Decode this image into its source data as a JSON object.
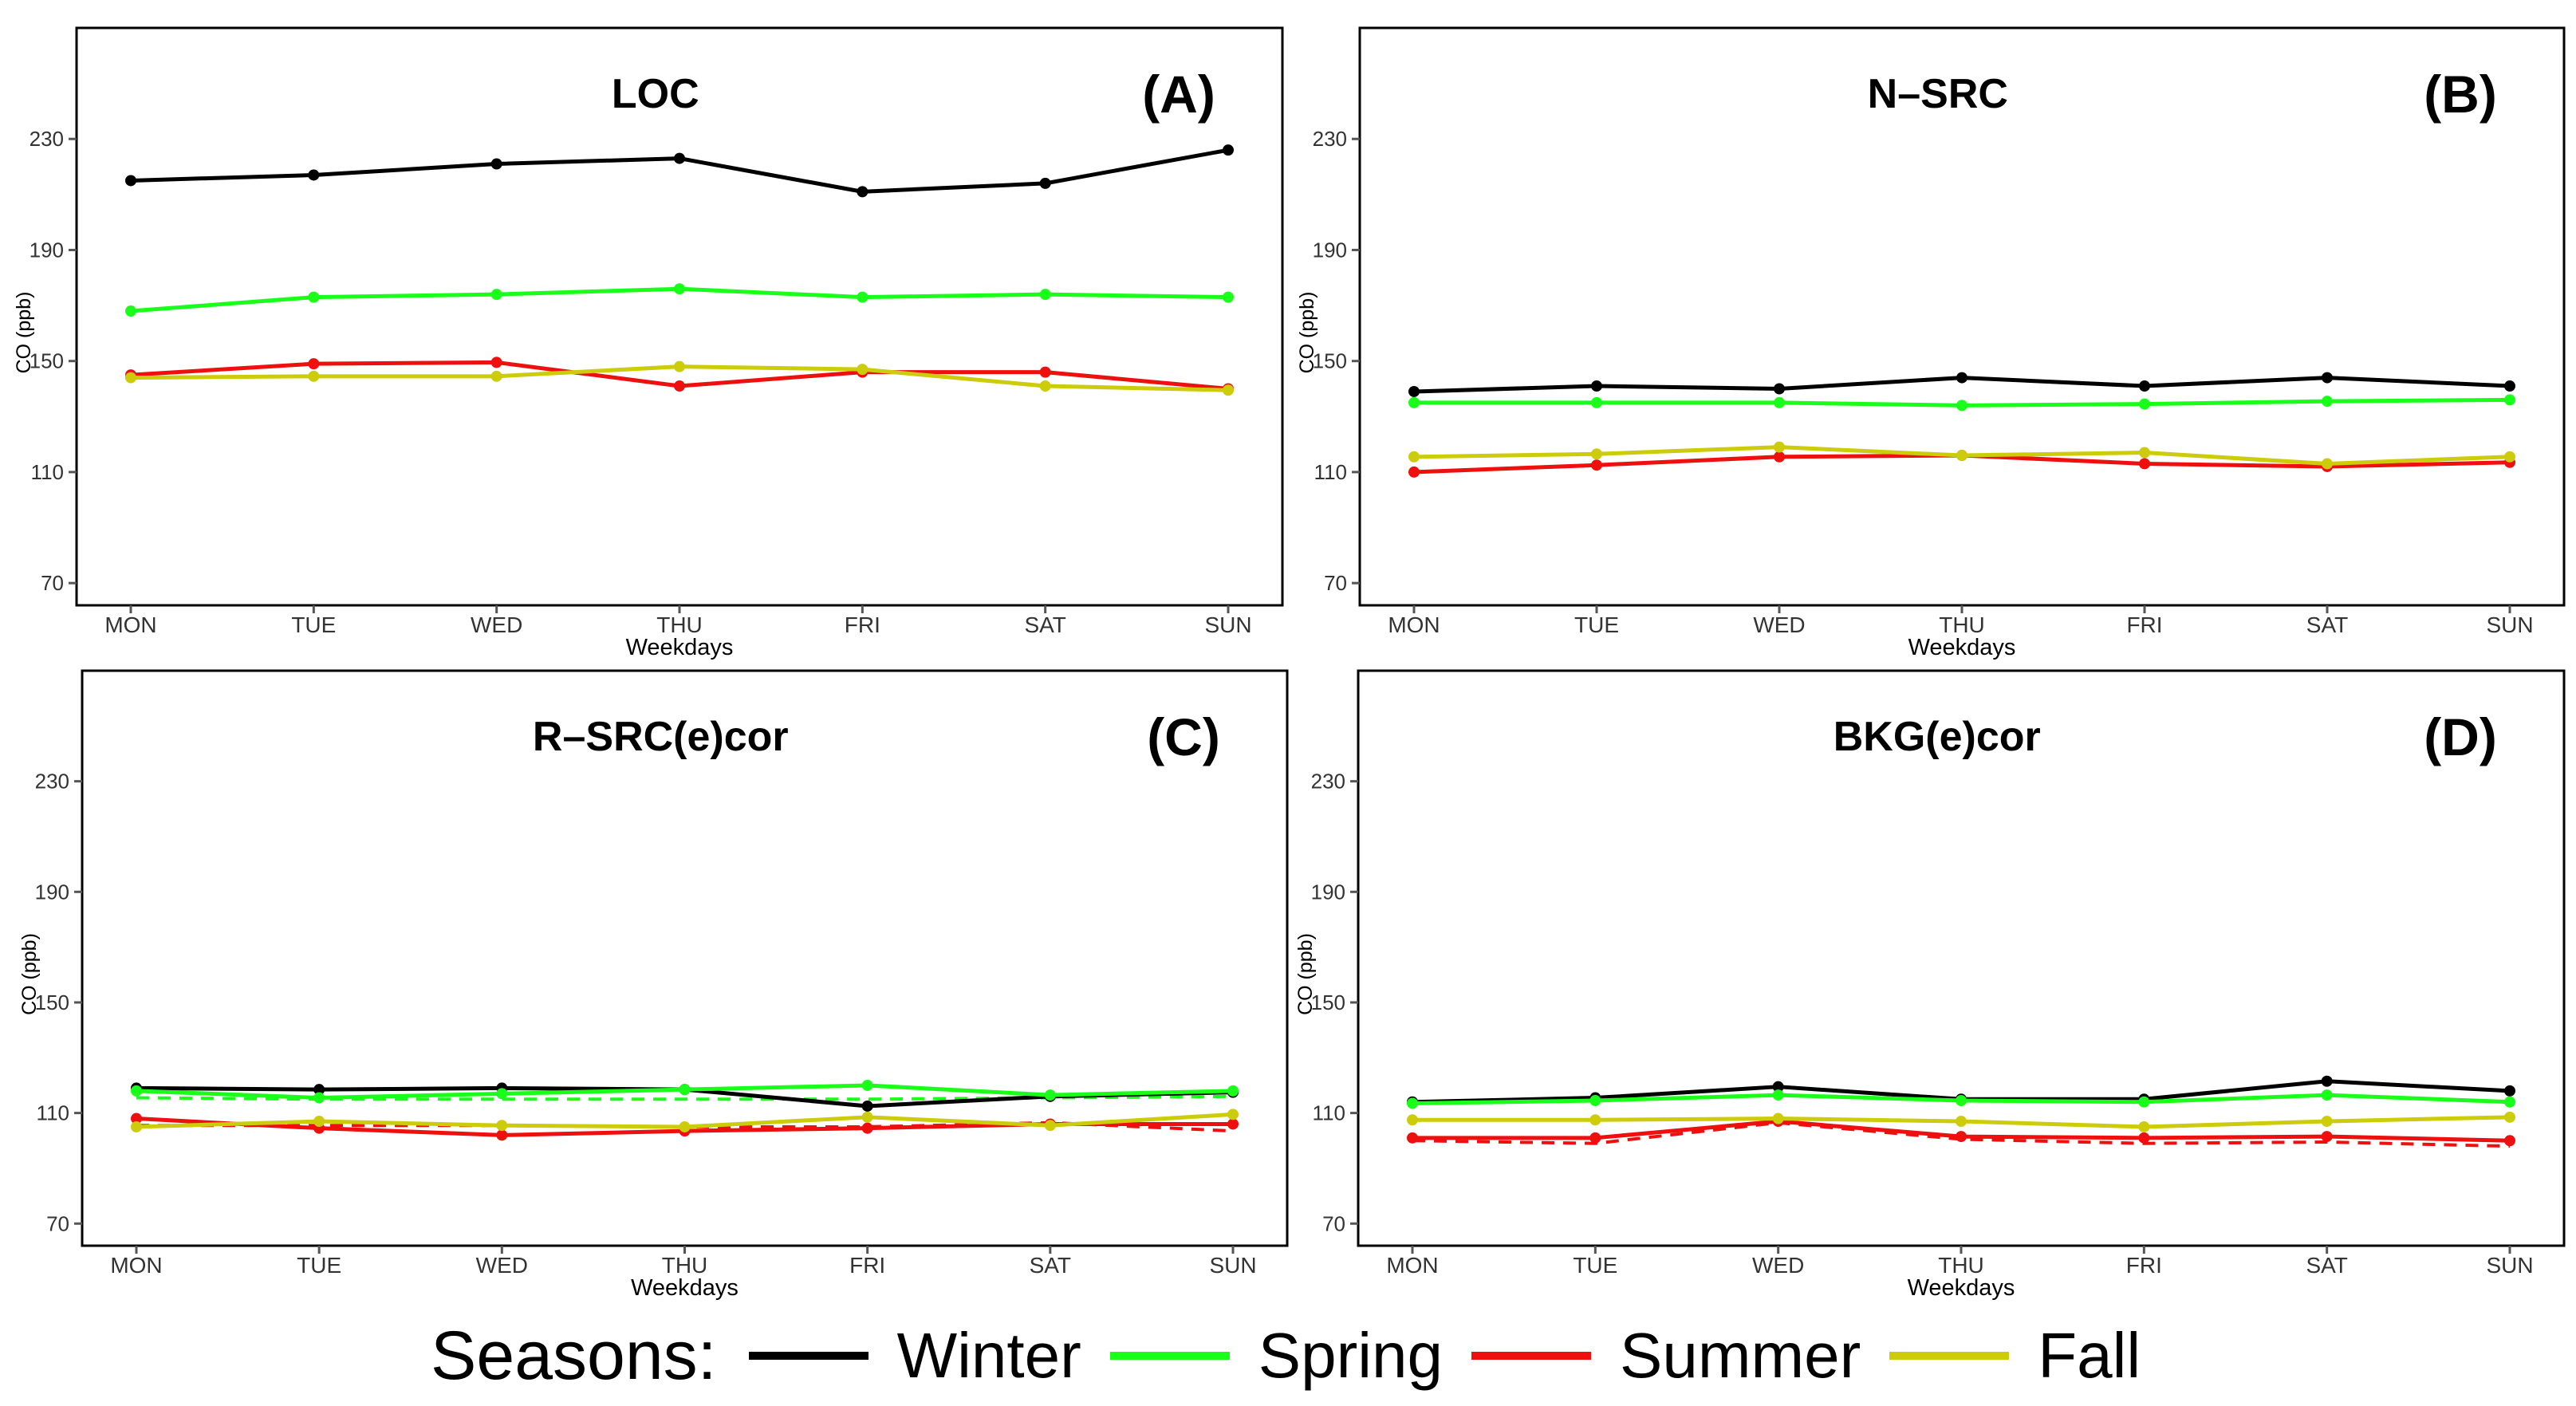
{
  "colors": {
    "Winter": "#000000",
    "Spring": "#19ff19",
    "Summer": "#ee0f0f",
    "Fall": "#cccc0a"
  },
  "legend": {
    "title": "Seasons:",
    "items": [
      {
        "label": "Winter",
        "color": "#000000"
      },
      {
        "label": "Spring",
        "color": "#19ff19"
      },
      {
        "label": "Summer",
        "color": "#ee0f0f"
      },
      {
        "label": "Fall",
        "color": "#cccc0a"
      }
    ]
  },
  "chart_data": [
    {
      "type": "line",
      "title": "LOC",
      "panel_label": "(A)",
      "xlabel": "Weekdays",
      "ylabel": "CO (ppb)",
      "categories": [
        "MON",
        "TUE",
        "WED",
        "THU",
        "FRI",
        "SAT",
        "SUN"
      ],
      "yticks": [
        70,
        110,
        150,
        190,
        230
      ],
      "ylim": [
        62,
        270
      ],
      "series": [
        {
          "name": "Winter",
          "values": [
            215,
            217,
            221,
            223,
            211,
            214,
            226
          ]
        },
        {
          "name": "Spring",
          "values": [
            168,
            173,
            174,
            176,
            173,
            174,
            173
          ]
        },
        {
          "name": "Summer",
          "values": [
            145,
            149,
            149.5,
            141,
            146,
            146,
            140
          ]
        },
        {
          "name": "Fall",
          "values": [
            144,
            144.5,
            144.5,
            148,
            147,
            141,
            139.5
          ]
        }
      ],
      "dashed_series": []
    },
    {
      "type": "line",
      "title": "N–SRC",
      "panel_label": "(B)",
      "xlabel": "Weekdays",
      "ylabel": "CO (ppb)",
      "categories": [
        "MON",
        "TUE",
        "WED",
        "THU",
        "FRI",
        "SAT",
        "SUN"
      ],
      "yticks": [
        70,
        110,
        150,
        190,
        230
      ],
      "ylim": [
        62,
        270
      ],
      "series": [
        {
          "name": "Winter",
          "values": [
            139,
            141,
            140,
            144,
            141,
            144,
            141
          ]
        },
        {
          "name": "Spring",
          "values": [
            135,
            135,
            135,
            134,
            134.5,
            135.5,
            136
          ]
        },
        {
          "name": "Summer",
          "values": [
            110,
            112.5,
            115.5,
            116,
            113,
            112,
            113.5
          ]
        },
        {
          "name": "Fall",
          "values": [
            115.5,
            116.5,
            119,
            116,
            117,
            113,
            115.5
          ]
        }
      ],
      "dashed_series": []
    },
    {
      "type": "line",
      "title": "R–SRC(e)cor",
      "panel_label": "(C)",
      "xlabel": "Weekdays",
      "ylabel": "CO (ppb)",
      "categories": [
        "MON",
        "TUE",
        "WED",
        "THU",
        "FRI",
        "SAT",
        "SUN"
      ],
      "yticks": [
        70,
        110,
        150,
        190,
        230
      ],
      "ylim": [
        62,
        270
      ],
      "series": [
        {
          "name": "Winter",
          "values": [
            119,
            118.5,
            119,
            118.5,
            112.5,
            116,
            117.5
          ]
        },
        {
          "name": "Spring",
          "values": [
            118,
            115.5,
            117,
            118.5,
            120,
            116.5,
            118
          ]
        },
        {
          "name": "Summer",
          "values": [
            108,
            104.5,
            102,
            103.5,
            104.5,
            106,
            106
          ]
        },
        {
          "name": "Fall",
          "values": [
            105,
            107,
            105.5,
            105,
            108.5,
            105.5,
            109.5
          ]
        }
      ],
      "dashed_series": [
        {
          "name": "Spring",
          "values": [
            115.5,
            115,
            115,
            115,
            115,
            115.5,
            116
          ]
        },
        {
          "name": "Summer",
          "values": [
            105.5,
            105.5,
            105.5,
            105,
            105,
            106.5,
            103.5
          ]
        }
      ]
    },
    {
      "type": "line",
      "title": "BKG(e)cor",
      "panel_label": "(D)",
      "xlabel": "Weekdays",
      "ylabel": "CO (ppb)",
      "categories": [
        "MON",
        "TUE",
        "WED",
        "THU",
        "FRI",
        "SAT",
        "SUN"
      ],
      "yticks": [
        70,
        110,
        150,
        190,
        230
      ],
      "ylim": [
        62,
        270
      ],
      "series": [
        {
          "name": "Winter",
          "values": [
            114,
            115.5,
            119.5,
            115,
            115,
            121.5,
            118
          ]
        },
        {
          "name": "Spring",
          "values": [
            113.5,
            114.5,
            116.5,
            114.5,
            114,
            116.5,
            114
          ]
        },
        {
          "name": "Summer",
          "values": [
            101,
            101,
            107,
            101.5,
            101,
            101.5,
            100
          ]
        },
        {
          "name": "Fall",
          "values": [
            107.5,
            107.5,
            108,
            107,
            105,
            107,
            108.5
          ]
        }
      ],
      "dashed_series": [
        {
          "name": "Summer",
          "values": [
            100,
            99,
            106.5,
            100.5,
            99,
            99.5,
            98
          ]
        }
      ]
    }
  ]
}
